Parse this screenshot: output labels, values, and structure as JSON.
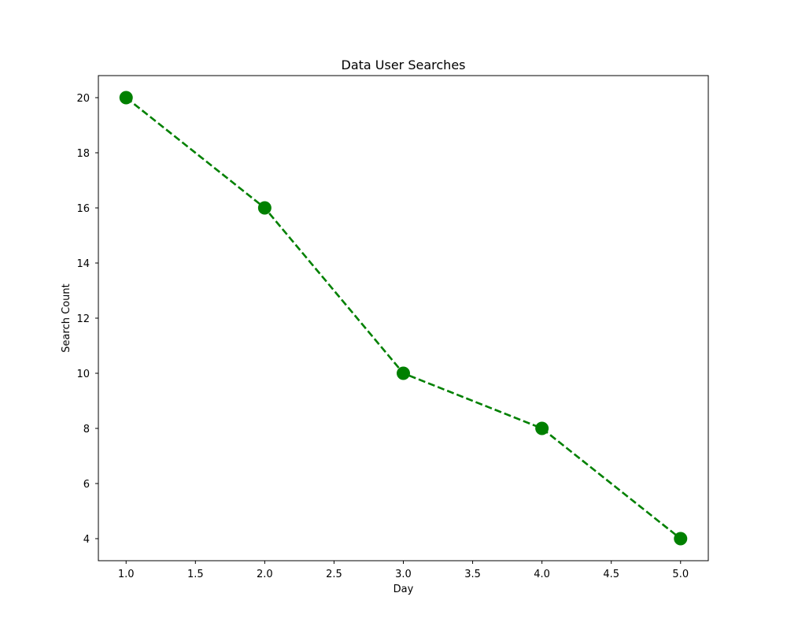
{
  "chart_data": {
    "type": "line",
    "title": "Data User Searches",
    "xlabel": "Day",
    "ylabel": "Search Count",
    "x": [
      1,
      2,
      3,
      4,
      5
    ],
    "series": [
      {
        "values": [
          20,
          16,
          10,
          8,
          4
        ]
      }
    ],
    "xlim": [
      0.8,
      5.2
    ],
    "ylim": [
      3.2,
      20.8
    ],
    "xticks": [
      "1.0",
      "1.5",
      "2.0",
      "2.5",
      "3.0",
      "3.5",
      "4.0",
      "4.5",
      "5.0"
    ],
    "yticks": [
      "4",
      "6",
      "8",
      "10",
      "12",
      "14",
      "16",
      "18",
      "20"
    ],
    "grid": false,
    "line_style": "dashed",
    "marker": "circle",
    "color": "#008000"
  }
}
